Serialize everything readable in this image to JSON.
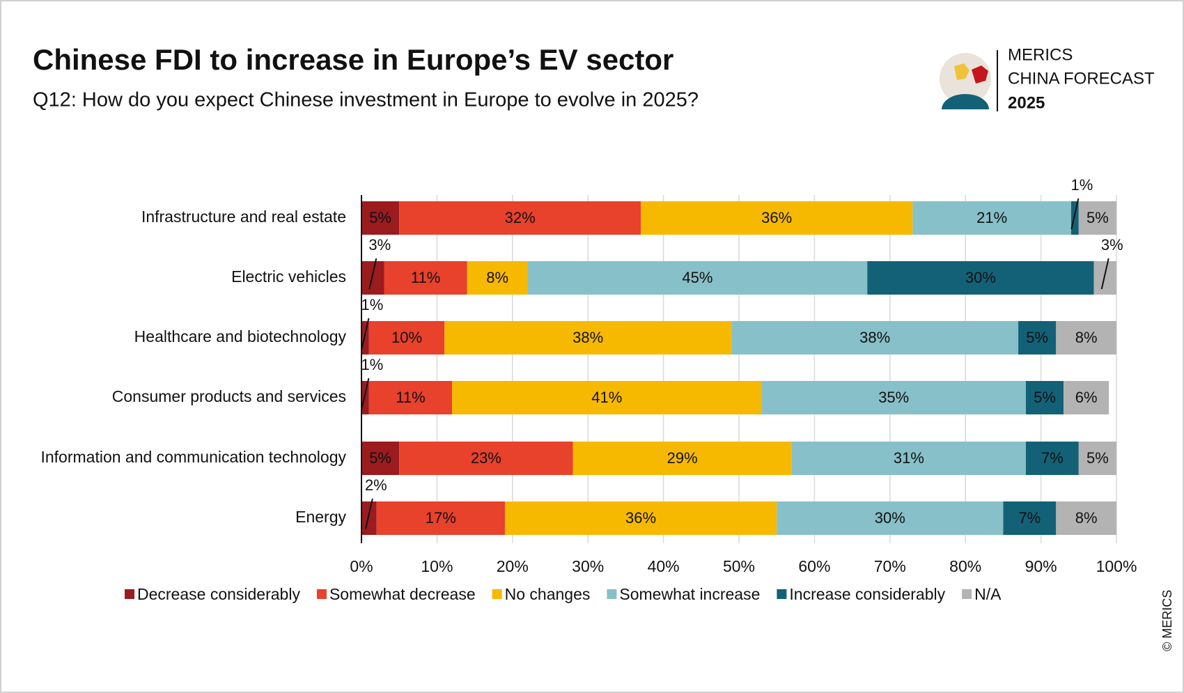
{
  "chart_data": {
    "type": "bar",
    "orientation": "horizontal",
    "stacked": true,
    "title": "Chinese FDI to increase in Europe’s EV sector",
    "subtitle": "Q12: How do you expect Chinese investment in Europe to evolve in 2025?",
    "categories": [
      "Infrastructure and real estate",
      "Electric vehicles",
      "Healthcare and biotechnology",
      "Consumer products and services",
      "Information and communication technology",
      "Energy"
    ],
    "series": [
      {
        "name": "Decrease considerably",
        "color": "#9b1b1f",
        "values": [
          5,
          3,
          1,
          1,
          5,
          2
        ],
        "value_labels": [
          "5%",
          "3%",
          "1%",
          "1%",
          "5%",
          "2%"
        ]
      },
      {
        "name": "Somewhat decrease",
        "color": "#e8412c",
        "values": [
          32,
          11,
          10,
          11,
          23,
          17
        ],
        "value_labels": [
          "32%",
          "11%",
          "10%",
          "11%",
          "23%",
          "17%"
        ]
      },
      {
        "name": "No changes",
        "color": "#f7b900",
        "values": [
          36,
          8,
          38,
          41,
          29,
          36
        ],
        "value_labels": [
          "36%",
          "8%",
          "38%",
          "41%",
          "29%",
          "36%"
        ]
      },
      {
        "name": "Somewhat increase",
        "color": "#87c0c8",
        "values": [
          21,
          45,
          38,
          35,
          31,
          30
        ],
        "value_labels": [
          "21%",
          "45%",
          "38%",
          "35%",
          "31%",
          "30%"
        ]
      },
      {
        "name": "Increase considerably",
        "color": "#136177",
        "values": [
          1,
          30,
          5,
          5,
          7,
          7
        ],
        "value_labels": [
          "1%",
          "30%",
          "5%",
          "5%",
          "7%",
          "7%"
        ]
      },
      {
        "name": "N/A",
        "color": "#b3b3b3",
        "values": [
          5,
          3,
          8,
          6,
          5,
          8
        ],
        "value_labels": [
          "5%",
          "3%",
          "8%",
          "6%",
          "5%",
          "8%"
        ]
      }
    ],
    "xlim": [
      0,
      100
    ],
    "xticks": [
      {
        "value": 0,
        "label": "0%"
      },
      {
        "value": 10,
        "label": "10%"
      },
      {
        "value": 20,
        "label": "20%"
      },
      {
        "value": 30,
        "label": "30%"
      },
      {
        "value": 40,
        "label": "40%"
      },
      {
        "value": 50,
        "label": "50%"
      },
      {
        "value": 60,
        "label": "60%"
      },
      {
        "value": 70,
        "label": "70%"
      },
      {
        "value": 80,
        "label": "80%"
      },
      {
        "value": 90,
        "label": "90%"
      },
      {
        "value": 100,
        "label": "100%"
      }
    ],
    "grid": true,
    "legend": "bottom"
  },
  "branding": {
    "line1": "MERICS",
    "line2": "CHINA FORECAST",
    "line3": "2025",
    "copyright": "© MERICS"
  }
}
